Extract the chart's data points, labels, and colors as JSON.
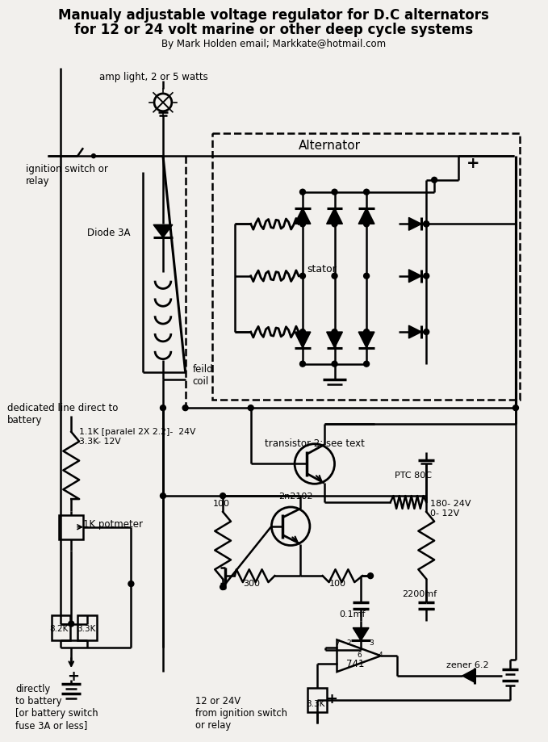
{
  "title_line1": "Manualy adjustable voltage regulator for D.C alternators",
  "title_line2": "for 12 or 24 volt marine or other deep cycle systems",
  "title_line3": "By Mark Holden email; Markkate@hotmail.com",
  "bg_color": "#f2f0ed",
  "line_color": "#000000",
  "text_color": "#000000",
  "figsize": [
    6.79,
    9.19
  ],
  "dpi": 100
}
